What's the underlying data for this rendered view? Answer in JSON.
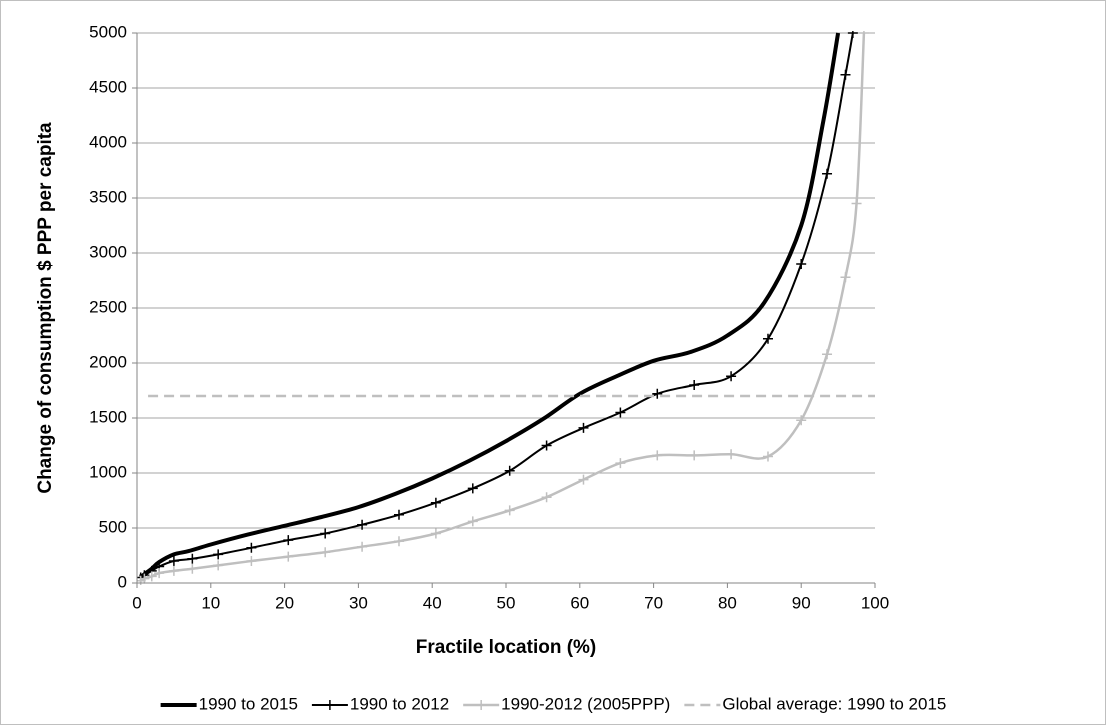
{
  "chart_data": {
    "type": "line",
    "xlabel": "Fractile location (%)",
    "ylabel": "Change of  consumption $ PPP per capita",
    "xlim": [
      0,
      100
    ],
    "xticks": [
      0,
      10,
      20,
      30,
      40,
      50,
      60,
      70,
      80,
      90,
      100
    ],
    "ylim": [
      0,
      5000
    ],
    "yticks": [
      0,
      500,
      1000,
      1500,
      2000,
      2500,
      3000,
      3500,
      4000,
      4500,
      5000
    ],
    "grid": true,
    "legend": "bottom",
    "series": [
      {
        "name": "1990 to 2015",
        "color": "#000000",
        "width": 4,
        "marker": false,
        "dashed": false,
        "x": [
          0.5,
          1,
          2,
          3,
          5,
          7,
          10,
          15,
          20,
          25,
          30,
          35,
          40,
          45,
          50,
          55,
          60,
          65,
          70,
          75,
          80,
          85,
          90,
          93,
          95
        ],
        "values": [
          50,
          80,
          130,
          190,
          260,
          290,
          350,
          440,
          520,
          600,
          690,
          810,
          950,
          1110,
          1290,
          1490,
          1720,
          1880,
          2020,
          2100,
          2250,
          2550,
          3250,
          4200,
          5000
        ]
      },
      {
        "name": "1990 to 2012",
        "color": "#000000",
        "width": 2,
        "marker": true,
        "dashed": false,
        "x": [
          0.5,
          1,
          2,
          3,
          5,
          7.5,
          11,
          15.5,
          20.5,
          25.5,
          30.5,
          35.5,
          40.5,
          45.5,
          50.5,
          55.5,
          60.5,
          65.5,
          70.5,
          75.5,
          80.5,
          85.5,
          90,
          93.5,
          96,
          97
        ],
        "values": [
          50,
          70,
          110,
          150,
          200,
          220,
          260,
          320,
          390,
          450,
          530,
          620,
          730,
          860,
          1020,
          1250,
          1410,
          1550,
          1720,
          1800,
          1880,
          2220,
          2900,
          3720,
          4620,
          5000
        ]
      },
      {
        "name": "1990-2012 (2005PPP)",
        "color": "#bfbfbf",
        "width": 2.5,
        "marker": true,
        "dashed": false,
        "x": [
          0.5,
          1,
          2,
          3,
          5,
          7.5,
          11,
          15.5,
          20.5,
          25.5,
          30.5,
          35.5,
          40.5,
          45.5,
          50.5,
          55.5,
          60.5,
          65.5,
          70.5,
          75.5,
          80.5,
          85.5,
          90,
          93.5,
          96,
          97.5,
          98.5
        ],
        "values": [
          20,
          40,
          60,
          90,
          110,
          130,
          160,
          200,
          240,
          280,
          330,
          380,
          450,
          560,
          660,
          780,
          940,
          1090,
          1160,
          1160,
          1170,
          1150,
          1480,
          2080,
          2780,
          3450,
          5000
        ]
      },
      {
        "name": "Global average: 1990 to 2015",
        "color": "#bfbfbf",
        "width": 2.5,
        "marker": false,
        "dashed": true,
        "x": [
          1.5,
          100
        ],
        "values": [
          1700,
          1700
        ]
      }
    ]
  }
}
